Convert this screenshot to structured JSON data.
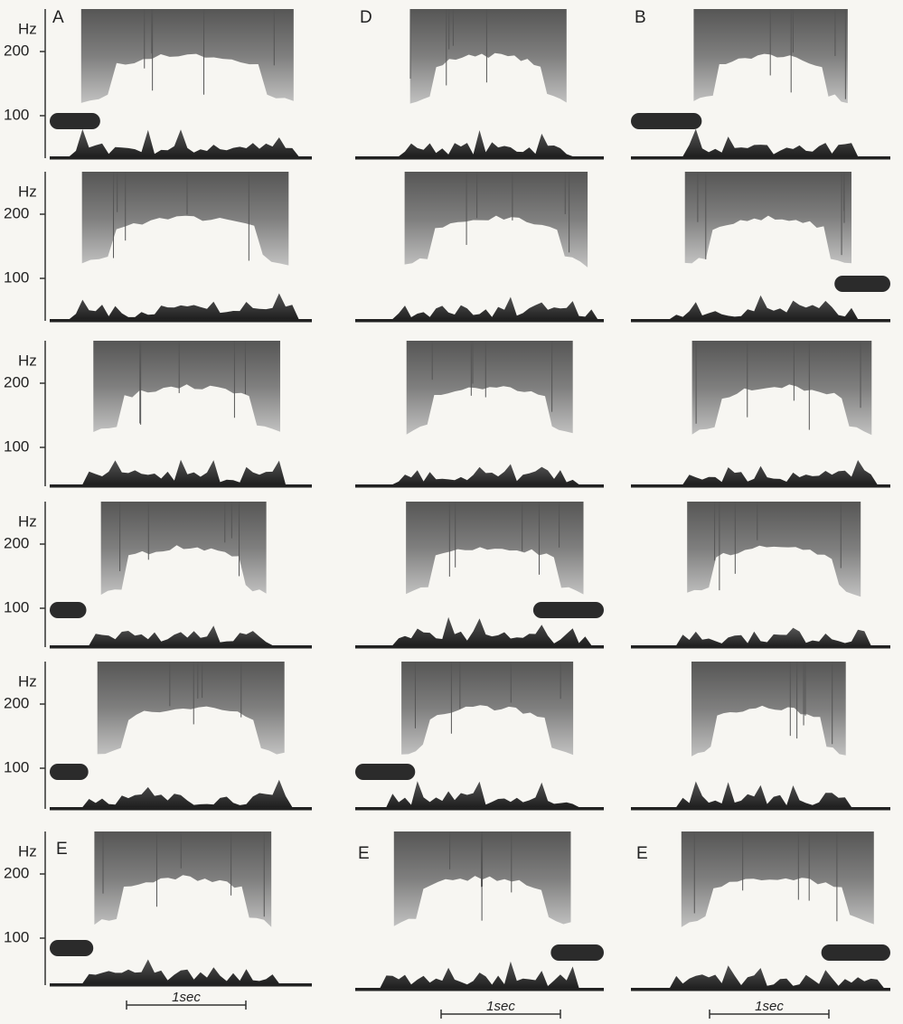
{
  "panel_labels": {
    "top": [
      "A",
      "D",
      "B"
    ],
    "bottom": [
      "E",
      "E",
      "E"
    ]
  },
  "y_axis": {
    "unit": "Hz",
    "ticks": [
      200,
      100
    ]
  },
  "time_scale": "1sec"
}
